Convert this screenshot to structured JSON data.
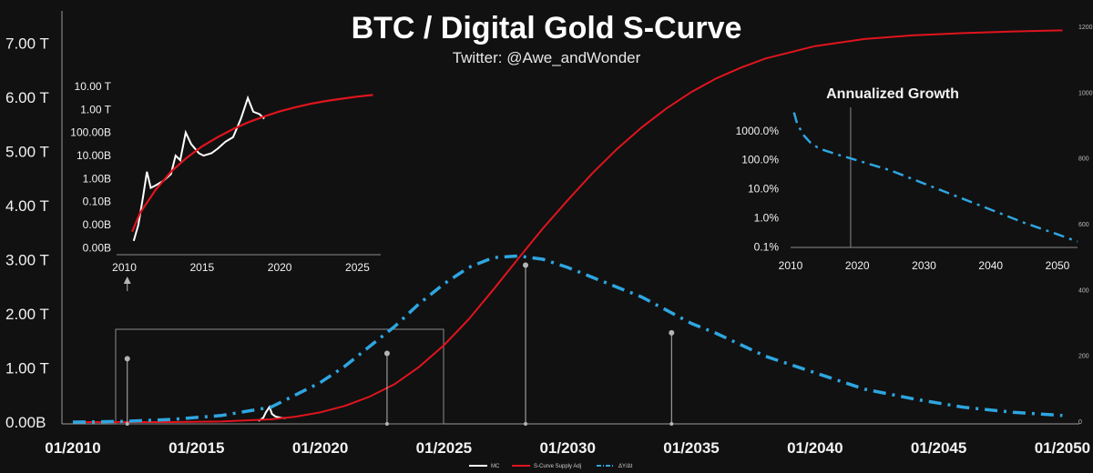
{
  "chart_data": {
    "type": "line",
    "title": "BTC / Digital Gold S-Curve",
    "subtitle": "Twitter: @Awe_andWonder",
    "main": {
      "xlim": [
        2010,
        2050.5
      ],
      "x_ticks": [
        "01/2010",
        "01/2015",
        "01/2020",
        "01/2025",
        "01/2030",
        "01/2035",
        "01/2040",
        "01/2045",
        "01/2050"
      ],
      "x_tick_years": [
        2010,
        2015,
        2020,
        2025,
        2030,
        2035,
        2040,
        2045,
        2050
      ],
      "ylim": [
        0,
        7.6
      ],
      "y_ticks": [
        "0.00B",
        "1.00 T",
        "2.00 T",
        "3.00 T",
        "4.00 T",
        "5.00 T",
        "6.00 T",
        "7.00 T"
      ],
      "y_tick_values": [
        0,
        1,
        2,
        3,
        4,
        5,
        6,
        7
      ],
      "y2lim": [
        0,
        1250
      ],
      "y2_ticks": [
        "0",
        "200",
        "400",
        "600",
        "800",
        "1000",
        "1200"
      ],
      "y2_tick_values": [
        0,
        200,
        400,
        600,
        800,
        1000,
        1200
      ],
      "series": [
        {
          "name": "MC",
          "color": "#ffffff",
          "style": "solid",
          "x": [
            2017.5,
            2017.7,
            2017.8,
            2017.95,
            2018.05,
            2018.2,
            2018.4,
            2018.6
          ],
          "y": [
            0.02,
            0.08,
            0.18,
            0.28,
            0.15,
            0.1,
            0.08,
            0.07
          ]
        },
        {
          "name": "S-Curve Supply Adj",
          "color": "#e0141e",
          "style": "solid",
          "x": [
            2010,
            2012,
            2014,
            2016,
            2018,
            2019,
            2020,
            2021,
            2022,
            2023,
            2024,
            2025,
            2026,
            2027,
            2028,
            2029,
            2030,
            2031,
            2032,
            2033,
            2034,
            2035,
            2036,
            2037,
            2038,
            2040,
            2042,
            2044,
            2046,
            2048,
            2050
          ],
          "y": [
            0,
            0,
            0,
            0.01,
            0.05,
            0.1,
            0.18,
            0.3,
            0.47,
            0.7,
            1.02,
            1.42,
            1.9,
            2.45,
            3.02,
            3.58,
            4.1,
            4.6,
            5.05,
            5.45,
            5.8,
            6.1,
            6.35,
            6.55,
            6.72,
            6.95,
            7.08,
            7.15,
            7.19,
            7.22,
            7.24
          ]
        },
        {
          "name": "ΔY/Δt",
          "color": "#2ea6e0",
          "style": "dashdot",
          "axis": "right",
          "x": [
            2010,
            2012,
            2014,
            2016,
            2018,
            2020,
            2021,
            2022,
            2023,
            2024,
            2025,
            2026,
            2027,
            2028,
            2029,
            2030,
            2031,
            2032,
            2033,
            2034,
            2035,
            2036,
            2038,
            2040,
            2042,
            2044,
            2046,
            2048,
            2050
          ],
          "y": [
            0,
            2,
            8,
            20,
            45,
            120,
            170,
            230,
            290,
            360,
            420,
            470,
            500,
            505,
            495,
            470,
            440,
            410,
            380,
            340,
            300,
            270,
            200,
            150,
            100,
            70,
            45,
            30,
            20
          ]
        }
      ],
      "markers": [
        {
          "x": 2012.2,
          "value": "1.17 T"
        },
        {
          "x": 2022.7,
          "value": "1.27 T"
        },
        {
          "x": 2028.3,
          "value": "2.90 T"
        },
        {
          "x": 2034.2,
          "value": "1.65 T"
        }
      ]
    },
    "inset_left": {
      "xlim": [
        2009.5,
        2026.5
      ],
      "x_ticks": [
        "2010",
        "2015",
        "2020",
        "2025"
      ],
      "x_tick_values": [
        2010,
        2015,
        2020,
        2025
      ],
      "y_ticks": [
        "0.00B",
        "0.00B",
        "0.10B",
        "1.00B",
        "10.00B",
        "100.00B",
        "1.00 T",
        "10.00 T"
      ],
      "y_log10": [
        -2,
        -1,
        0,
        1,
        2,
        3,
        4,
        5
      ],
      "series": [
        {
          "name": "MC",
          "color": "#ffffff",
          "x": [
            2010.6,
            2010.9,
            2011.2,
            2011.45,
            2011.7,
            2012.0,
            2012.5,
            2013.0,
            2013.3,
            2013.6,
            2013.95,
            2014.3,
            2014.8,
            2015.1,
            2015.6,
            2016.0,
            2016.5,
            2017.0,
            2017.5,
            2017.95,
            2018.3,
            2018.7,
            2019.0
          ],
          "y": [
            -1.7,
            -1.0,
            0.2,
            1.3,
            0.6,
            0.7,
            0.9,
            1.2,
            2.0,
            1.8,
            3.0,
            2.5,
            2.1,
            2.0,
            2.1,
            2.3,
            2.6,
            2.8,
            3.6,
            4.5,
            3.9,
            3.8,
            3.6
          ]
        },
        {
          "name": "S-Curve Supply Adj",
          "color": "#e0141e",
          "x": [
            2010.5,
            2011,
            2012,
            2013,
            2014,
            2015,
            2016,
            2017,
            2018,
            2019,
            2020,
            2021,
            2022,
            2023,
            2024,
            2025,
            2026
          ],
          "y": [
            -1.3,
            -0.5,
            0.5,
            1.3,
            1.9,
            2.4,
            2.8,
            3.15,
            3.45,
            3.7,
            3.92,
            4.1,
            4.25,
            4.37,
            4.47,
            4.56,
            4.63
          ]
        }
      ]
    },
    "inset_right": {
      "title": "Annualized Growth",
      "xlim": [
        2010,
        2053
      ],
      "x_ticks": [
        "2010",
        "2020",
        "2030",
        "2040",
        "2050"
      ],
      "x_tick_values": [
        2010,
        2020,
        2030,
        2040,
        2050
      ],
      "y_ticks": [
        "0.1%",
        "1.0%",
        "10.0%",
        "100.0%",
        "1000.0%"
      ],
      "y_log10": [
        -1,
        0,
        1,
        2,
        3
      ],
      "series": [
        {
          "name": "ΔY/Δt",
          "color": "#2ea6e0",
          "x": [
            2010.5,
            2011,
            2012,
            2013,
            2014,
            2015,
            2017,
            2020,
            2025,
            2030,
            2035,
            2040,
            2045,
            2050,
            2053
          ],
          "y": [
            3.6,
            3.2,
            2.8,
            2.55,
            2.4,
            2.3,
            2.15,
            1.95,
            1.6,
            1.15,
            0.7,
            0.25,
            -0.2,
            -0.6,
            -0.85
          ]
        }
      ],
      "guide_year": 2019
    },
    "legend": [
      "MC",
      "S-Curve Supply Adj",
      "ΔY/Δt"
    ]
  }
}
